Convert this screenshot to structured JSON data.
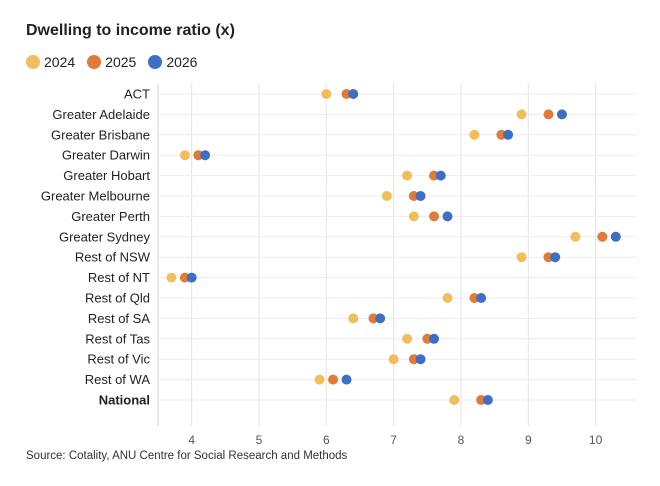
{
  "title": "Dwelling to income ratio (x)",
  "source": "Source: Cotality, ANU Centre for Social Research and Methods",
  "chart_data": {
    "type": "scatter",
    "title": "Dwelling to income ratio (x)",
    "categories": [
      "ACT",
      "Greater Adelaide",
      "Greater Brisbane",
      "Greater Darwin",
      "Greater Hobart",
      "Greater Melbourne",
      "Greater Perth",
      "Greater Sydney",
      "Rest of NSW",
      "Rest of NT",
      "Rest of Qld",
      "Rest of SA",
      "Rest of Tas",
      "Rest of Vic",
      "Rest of WA",
      "National"
    ],
    "bold_categories": [
      "National"
    ],
    "series": [
      {
        "name": "2024",
        "color": "#f2be5b",
        "values": [
          6.0,
          8.9,
          8.2,
          3.9,
          7.2,
          6.9,
          7.3,
          9.7,
          8.9,
          3.7,
          7.8,
          6.4,
          7.2,
          7.0,
          5.9,
          7.9
        ]
      },
      {
        "name": "2025",
        "color": "#e07b39",
        "values": [
          6.3,
          9.3,
          8.6,
          4.1,
          7.6,
          7.3,
          7.6,
          10.1,
          9.3,
          3.9,
          8.2,
          6.7,
          7.5,
          7.3,
          6.1,
          8.3
        ]
      },
      {
        "name": "2026",
        "color": "#3d6fc4",
        "values": [
          6.4,
          9.5,
          8.7,
          4.2,
          7.7,
          7.4,
          7.8,
          10.3,
          9.4,
          4.0,
          8.3,
          6.8,
          7.6,
          7.4,
          6.3,
          8.4
        ]
      }
    ],
    "xlim": [
      3.5,
      10.6
    ],
    "xticks": [
      4,
      5,
      6,
      7,
      8,
      9,
      10
    ],
    "xlabel": "",
    "ylabel": "",
    "grid": true,
    "legend": "top-left"
  }
}
